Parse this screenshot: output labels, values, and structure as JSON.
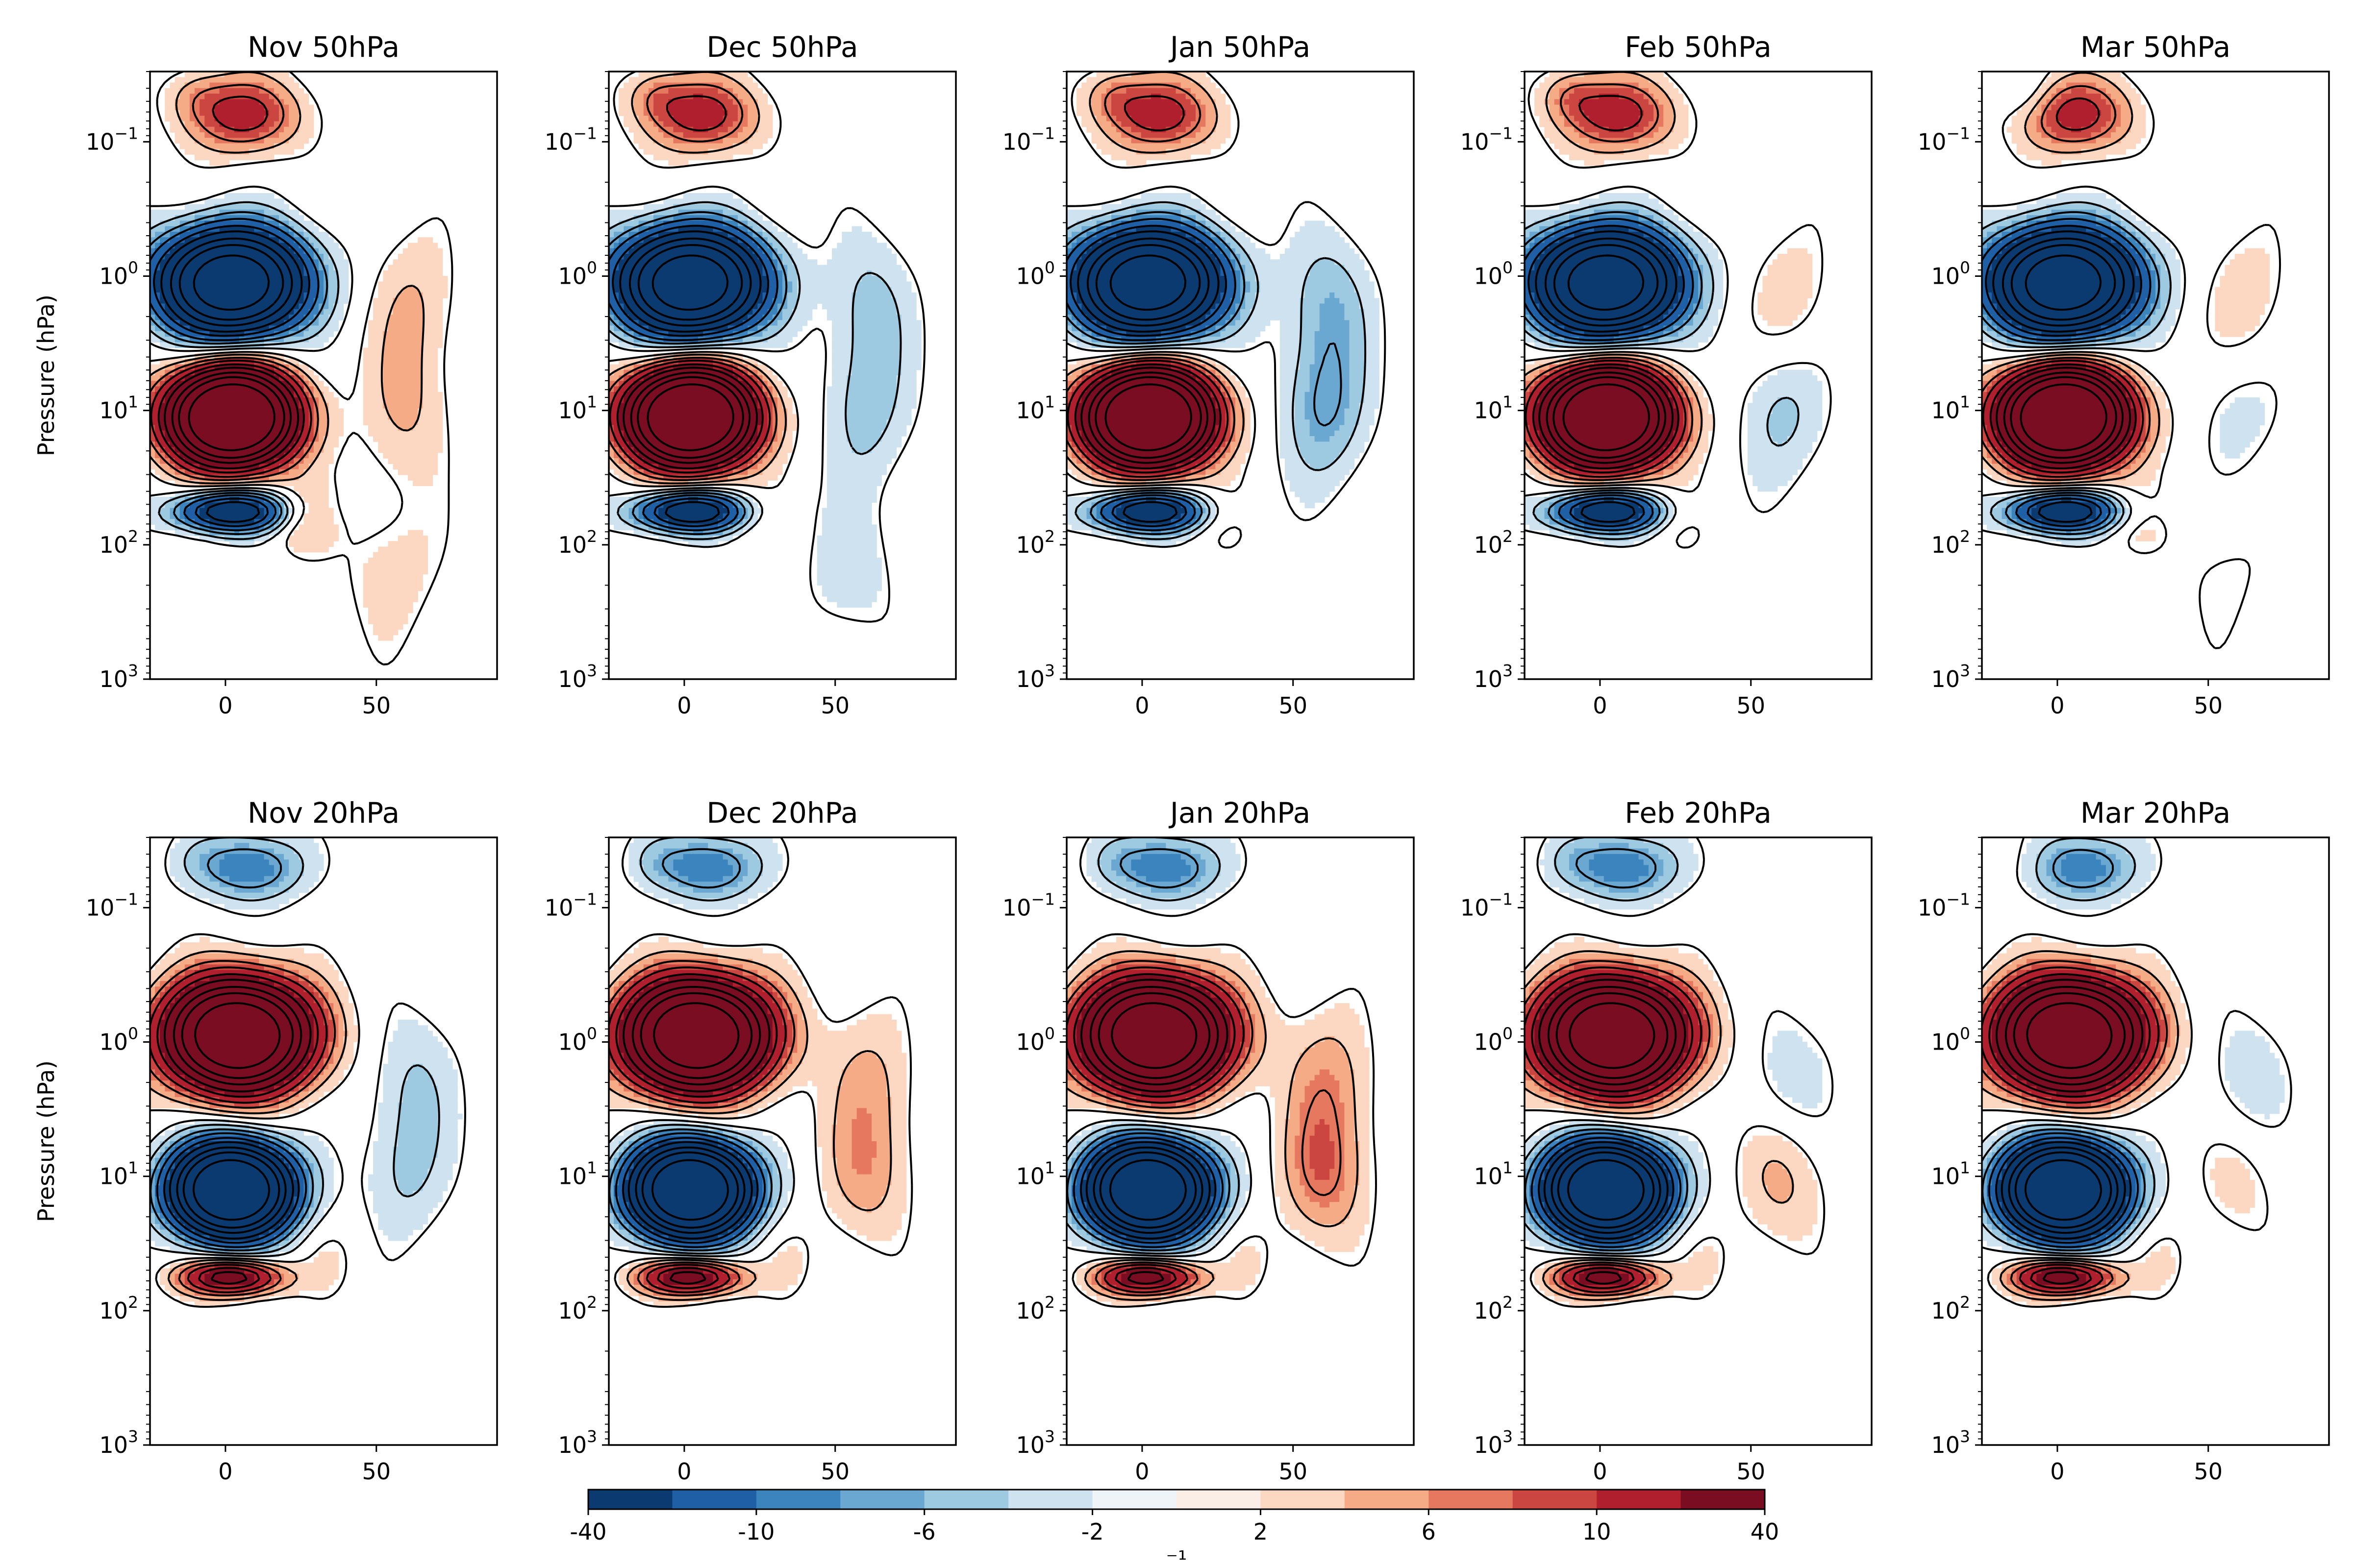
{
  "chart_data": {
    "type": "heatmap",
    "ylabel": "Pressure (hPa)",
    "y_scale": "log",
    "ylim": [
      1000,
      0.03
    ],
    "xlim": [
      -25,
      90
    ],
    "x_ticks": [
      0,
      50
    ],
    "y_ticks": [
      {
        "mant": "10",
        "exp": "−1"
      },
      {
        "mant": "10",
        "exp": "0"
      },
      {
        "mant": "10",
        "exp": "1"
      },
      {
        "mant": "10",
        "exp": "2"
      },
      {
        "mant": "10",
        "exp": "3"
      }
    ],
    "panels": [
      {
        "title": "Nov 50hPa",
        "month": "Nov",
        "level": 50
      },
      {
        "title": "Dec 50hPa",
        "month": "Dec",
        "level": 50
      },
      {
        "title": "Jan 50hPa",
        "month": "Jan",
        "level": 50
      },
      {
        "title": "Feb 50hPa",
        "month": "Feb",
        "level": 50
      },
      {
        "title": "Mar 50hPa",
        "month": "Mar",
        "level": 50
      },
      {
        "title": "Nov 20hPa",
        "month": "Nov",
        "level": 20
      },
      {
        "title": "Dec 20hPa",
        "month": "Dec",
        "level": 20
      },
      {
        "title": "Jan 20hPa",
        "month": "Jan",
        "level": 20
      },
      {
        "title": "Feb 20hPa",
        "month": "Feb",
        "level": 20
      },
      {
        "title": "Mar 20hPa",
        "month": "Mar",
        "level": 20
      }
    ],
    "colorbar": {
      "tick_labels": [
        "-40",
        "-10",
        "-6",
        "-2",
        "2",
        "6",
        "10",
        "40"
      ],
      "boundaries": [
        -40,
        -15,
        -10,
        -8,
        -6,
        -4,
        -2,
        0,
        2,
        4,
        6,
        8,
        10,
        15,
        40
      ],
      "colors": [
        "#0b3a70",
        "#1f5fa6",
        "#3b84be",
        "#6aa8d2",
        "#9ecae1",
        "#cfe2f0",
        "#eef4f8",
        "#fbeee7",
        "#fcd7c2",
        "#f5ab86",
        "#e5785e",
        "#cc4641",
        "#b01f2d",
        "#7a0d22"
      ],
      "label": "⁻¹"
    }
  }
}
